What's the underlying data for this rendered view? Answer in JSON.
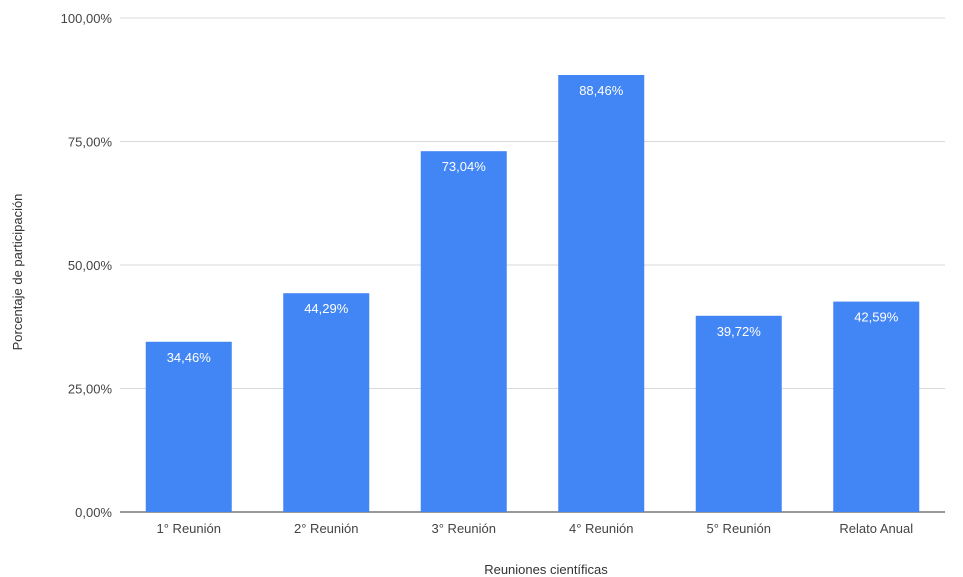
{
  "chart_data": {
    "type": "bar",
    "categories": [
      "1° Reunión",
      "2° Reunión",
      "3° Reunión",
      "4° Reunión",
      "5° Reunión",
      "Relato Anual"
    ],
    "values": [
      34.46,
      44.29,
      73.04,
      88.46,
      39.72,
      42.59
    ],
    "data_labels": [
      "34,46%",
      "44,29%",
      "73,04%",
      "88,46%",
      "39,72%",
      "42,59%"
    ],
    "y_ticks": [
      0,
      25,
      50,
      75,
      100
    ],
    "y_tick_labels": [
      "0,00%",
      "25,00%",
      "50,00%",
      "75,00%",
      "100,00%"
    ],
    "ylim": [
      0,
      100
    ],
    "xlabel": "Reuniones científicas",
    "ylabel": "Porcentaje de participación",
    "title": "",
    "grid": true,
    "colors": {
      "bar": "#4285f4",
      "grid": "#d9d9d9",
      "baseline": "#333333"
    }
  }
}
